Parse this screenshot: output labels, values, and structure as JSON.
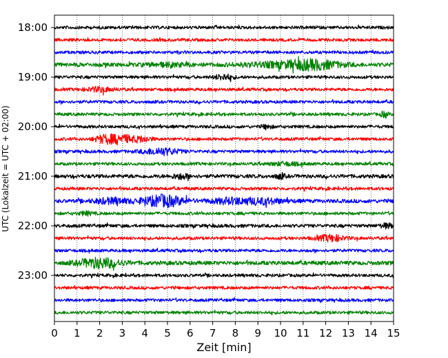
{
  "chart_data": {
    "type": "line",
    "title": "",
    "xlabel": "Zeit  [min]",
    "ylabel": "UTC (Lokalzeit = UTC + 02:00)",
    "xlim": [
      0,
      15
    ],
    "x_ticks": [
      "0",
      "1",
      "2",
      "3",
      "4",
      "5",
      "6",
      "7",
      "8",
      "9",
      "10",
      "11",
      "12",
      "13",
      "14",
      "15"
    ],
    "y_tick_labels": [
      "18:00",
      "19:00",
      "20:00",
      "21:00",
      "22:00",
      "23:00"
    ],
    "grid": "vertical dotted lines at each minute",
    "trace_colors": [
      "#000000",
      "#ff0000",
      "#0000ff",
      "#008000"
    ],
    "traces": [
      {
        "start": "18:00",
        "color": "#000000",
        "level": 1.0,
        "bursts": []
      },
      {
        "start": "18:15",
        "color": "#ff0000",
        "level": 1.0,
        "bursts": []
      },
      {
        "start": "18:30",
        "color": "#0000ff",
        "level": 1.0,
        "bursts": []
      },
      {
        "start": "18:45",
        "color": "#008000",
        "level": 1.3,
        "bursts": [
          {
            "t": 11.4,
            "w": 1.2,
            "a": 2.2
          },
          {
            "t": 9.5,
            "w": 1.5,
            "a": 0.8
          },
          {
            "t": 5.0,
            "w": 1.0,
            "a": 0.6
          }
        ]
      },
      {
        "start": "19:00",
        "color": "#000000",
        "level": 1.0,
        "bursts": [
          {
            "t": 7.5,
            "w": 0.4,
            "a": 1.3
          }
        ]
      },
      {
        "start": "19:15",
        "color": "#ff0000",
        "level": 1.0,
        "bursts": [
          {
            "t": 2.0,
            "w": 0.6,
            "a": 1.0
          }
        ]
      },
      {
        "start": "19:30",
        "color": "#0000ff",
        "level": 1.0,
        "bursts": []
      },
      {
        "start": "19:45",
        "color": "#008000",
        "level": 1.0,
        "bursts": [
          {
            "t": 14.6,
            "w": 0.15,
            "a": 1.5
          }
        ]
      },
      {
        "start": "20:00",
        "color": "#000000",
        "level": 1.0,
        "bursts": [
          {
            "t": 9.4,
            "w": 0.2,
            "a": 1.0
          }
        ]
      },
      {
        "start": "20:15",
        "color": "#ff0000",
        "level": 1.0,
        "bursts": [
          {
            "t": 2.3,
            "w": 0.5,
            "a": 2.0
          },
          {
            "t": 3.1,
            "w": 0.5,
            "a": 1.6
          },
          {
            "t": 3.9,
            "w": 0.4,
            "a": 1.2
          }
        ]
      },
      {
        "start": "20:30",
        "color": "#0000ff",
        "level": 1.0,
        "bursts": [
          {
            "t": 4.7,
            "w": 0.8,
            "a": 1.6
          }
        ]
      },
      {
        "start": "20:45",
        "color": "#008000",
        "level": 1.0,
        "bursts": [
          {
            "t": 10.2,
            "w": 0.7,
            "a": 0.7
          }
        ]
      },
      {
        "start": "21:00",
        "color": "#000000",
        "level": 1.2,
        "bursts": [
          {
            "t": 5.6,
            "w": 0.4,
            "a": 1.0
          },
          {
            "t": 10.0,
            "w": 0.2,
            "a": 1.0
          }
        ]
      },
      {
        "start": "21:15",
        "color": "#ff0000",
        "level": 1.0,
        "bursts": []
      },
      {
        "start": "21:30",
        "color": "#0000ff",
        "level": 1.2,
        "bursts": [
          {
            "t": 4.8,
            "w": 0.9,
            "a": 2.8
          },
          {
            "t": 2.5,
            "w": 0.8,
            "a": 1.2
          },
          {
            "t": 7.8,
            "w": 0.9,
            "a": 1.3
          },
          {
            "t": 9.3,
            "w": 0.9,
            "a": 1.2
          }
        ]
      },
      {
        "start": "21:45",
        "color": "#008000",
        "level": 1.0,
        "bursts": [
          {
            "t": 1.4,
            "w": 0.3,
            "a": 0.8
          }
        ]
      },
      {
        "start": "22:00",
        "color": "#000000",
        "level": 1.1,
        "bursts": [
          {
            "t": 14.7,
            "w": 0.3,
            "a": 1.0
          }
        ]
      },
      {
        "start": "22:15",
        "color": "#ff0000",
        "level": 1.0,
        "bursts": [
          {
            "t": 12.2,
            "w": 0.6,
            "a": 1.5
          }
        ]
      },
      {
        "start": "22:30",
        "color": "#0000ff",
        "level": 1.0,
        "bursts": []
      },
      {
        "start": "22:45",
        "color": "#008000",
        "level": 1.3,
        "bursts": [
          {
            "t": 2.0,
            "w": 0.9,
            "a": 2.3
          }
        ]
      },
      {
        "start": "23:00",
        "color": "#000000",
        "level": 1.0,
        "bursts": []
      },
      {
        "start": "23:15",
        "color": "#ff0000",
        "level": 1.0,
        "bursts": []
      },
      {
        "start": "23:30",
        "color": "#0000ff",
        "level": 1.0,
        "bursts": []
      },
      {
        "start": "23:45",
        "color": "#008000",
        "level": 1.0,
        "bursts": []
      }
    ]
  }
}
